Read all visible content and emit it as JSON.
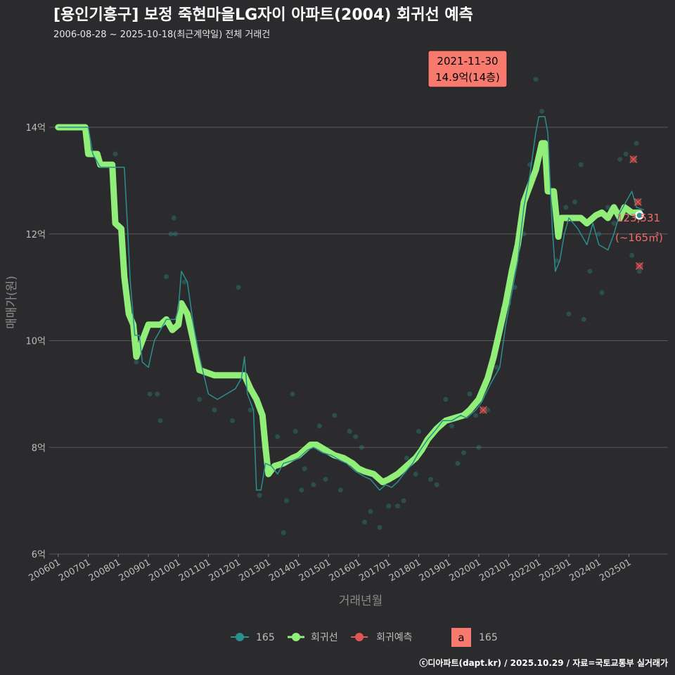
{
  "title": "[용인기흥구] 보정 죽현마을LG자이 아파트(2004) 회귀선 예측",
  "subtitle": "2006-08-28 ~ 2025-10-18(최근계약일) 전체 거래건",
  "caption": "ⓒ디아파트(dapt.kr) / 2025.10.29 / 자료=국토교통부 실거래가",
  "colors": {
    "background": "#2b2b2d",
    "grid": "#5a5a5a",
    "regression": "#90ee79",
    "area_line": "#2a8f8f",
    "prediction": "#e05555",
    "annotation_bg": "#f87a6e"
  },
  "chart_data": {
    "type": "line",
    "xlabel": "거래년월",
    "ylabel": "매매가(원)",
    "ylim": [
      6,
      15.2
    ],
    "xlim": [
      2005.7,
      2026.3
    ],
    "y_ticks": [
      {
        "value": 6,
        "label": "6억"
      },
      {
        "value": 8,
        "label": "8억"
      },
      {
        "value": 10,
        "label": "10억"
      },
      {
        "value": 12,
        "label": "12억"
      },
      {
        "value": 14,
        "label": "14억"
      }
    ],
    "x_ticks": [
      {
        "value": 2006.0,
        "label": "200601"
      },
      {
        "value": 2007.0,
        "label": "200701"
      },
      {
        "value": 2008.0,
        "label": "200801"
      },
      {
        "value": 2009.0,
        "label": "200901"
      },
      {
        "value": 2010.0,
        "label": "201001"
      },
      {
        "value": 2011.0,
        "label": "201101"
      },
      {
        "value": 2012.0,
        "label": "201201"
      },
      {
        "value": 2013.0,
        "label": "201301"
      },
      {
        "value": 2014.0,
        "label": "201401"
      },
      {
        "value": 2015.0,
        "label": "201501"
      },
      {
        "value": 2016.0,
        "label": "201601"
      },
      {
        "value": 2017.0,
        "label": "201701"
      },
      {
        "value": 2018.0,
        "label": "201801"
      },
      {
        "value": 2019.0,
        "label": "201901"
      },
      {
        "value": 2020.0,
        "label": "202001"
      },
      {
        "value": 2021.0,
        "label": "202101"
      },
      {
        "value": 2022.0,
        "label": "202201"
      },
      {
        "value": 2023.0,
        "label": "202301"
      },
      {
        "value": 2024.0,
        "label": "202401"
      },
      {
        "value": 2025.0,
        "label": "202501"
      }
    ],
    "series": [
      {
        "name": "회귀선",
        "points": [
          [
            2006.0,
            14.0
          ],
          [
            2006.9,
            14.0
          ],
          [
            2007.0,
            13.5
          ],
          [
            2007.3,
            13.5
          ],
          [
            2007.4,
            13.3
          ],
          [
            2007.8,
            13.3
          ],
          [
            2007.9,
            12.2
          ],
          [
            2008.1,
            12.1
          ],
          [
            2008.2,
            11.2
          ],
          [
            2008.35,
            10.5
          ],
          [
            2008.5,
            10.3
          ],
          [
            2008.6,
            9.7
          ],
          [
            2008.8,
            10.0
          ],
          [
            2009.0,
            10.3
          ],
          [
            2009.4,
            10.3
          ],
          [
            2009.6,
            10.4
          ],
          [
            2009.8,
            10.2
          ],
          [
            2010.0,
            10.3
          ],
          [
            2010.1,
            10.7
          ],
          [
            2010.3,
            10.5
          ],
          [
            2010.5,
            10.0
          ],
          [
            2010.7,
            9.45
          ],
          [
            2011.2,
            9.35
          ],
          [
            2011.5,
            9.35
          ],
          [
            2012.2,
            9.35
          ],
          [
            2012.4,
            9.1
          ],
          [
            2012.6,
            8.9
          ],
          [
            2012.8,
            8.6
          ],
          [
            2012.9,
            8.0
          ],
          [
            2013.0,
            7.5
          ],
          [
            2013.2,
            7.65
          ],
          [
            2013.5,
            7.7
          ],
          [
            2013.8,
            7.8
          ],
          [
            2014.0,
            7.85
          ],
          [
            2014.2,
            7.95
          ],
          [
            2014.4,
            8.05
          ],
          [
            2014.6,
            8.05
          ],
          [
            2014.9,
            7.95
          ],
          [
            2015.2,
            7.85
          ],
          [
            2015.5,
            7.8
          ],
          [
            2015.8,
            7.7
          ],
          [
            2016.0,
            7.6
          ],
          [
            2016.2,
            7.55
          ],
          [
            2016.5,
            7.5
          ],
          [
            2016.8,
            7.35
          ],
          [
            2017.0,
            7.4
          ],
          [
            2017.3,
            7.5
          ],
          [
            2017.6,
            7.65
          ],
          [
            2017.9,
            7.8
          ],
          [
            2018.1,
            7.95
          ],
          [
            2018.3,
            8.15
          ],
          [
            2018.6,
            8.35
          ],
          [
            2018.9,
            8.5
          ],
          [
            2019.2,
            8.55
          ],
          [
            2019.5,
            8.6
          ],
          [
            2019.7,
            8.7
          ],
          [
            2020.0,
            8.9
          ],
          [
            2020.3,
            9.3
          ],
          [
            2020.5,
            9.7
          ],
          [
            2020.7,
            10.2
          ],
          [
            2020.9,
            10.7
          ],
          [
            2021.1,
            11.3
          ],
          [
            2021.3,
            11.8
          ],
          [
            2021.5,
            12.6
          ],
          [
            2021.7,
            12.9
          ],
          [
            2021.9,
            13.2
          ],
          [
            2022.1,
            13.7
          ],
          [
            2022.2,
            13.7
          ],
          [
            2022.3,
            12.8
          ],
          [
            2022.5,
            12.8
          ],
          [
            2022.65,
            11.95
          ],
          [
            2022.75,
            12.3
          ],
          [
            2023.0,
            12.3
          ],
          [
            2023.4,
            12.3
          ],
          [
            2023.6,
            12.2
          ],
          [
            2023.9,
            12.35
          ],
          [
            2024.1,
            12.4
          ],
          [
            2024.3,
            12.3
          ],
          [
            2024.5,
            12.5
          ],
          [
            2024.7,
            12.3
          ],
          [
            2024.85,
            12.5
          ],
          [
            2025.1,
            12.4
          ],
          [
            2025.35,
            12.4
          ]
        ]
      },
      {
        "name": "165",
        "points": [
          [
            2006.0,
            14.0
          ],
          [
            2007.0,
            14.0
          ],
          [
            2007.15,
            13.5
          ],
          [
            2007.4,
            13.25
          ],
          [
            2008.2,
            13.25
          ],
          [
            2008.3,
            12.2
          ],
          [
            2008.4,
            11.1
          ],
          [
            2008.55,
            10.1
          ],
          [
            2008.7,
            10.1
          ],
          [
            2008.8,
            9.6
          ],
          [
            2009.0,
            9.5
          ],
          [
            2009.2,
            10.0
          ],
          [
            2009.6,
            10.4
          ],
          [
            2009.9,
            10.4
          ],
          [
            2010.0,
            10.6
          ],
          [
            2010.1,
            11.3
          ],
          [
            2010.3,
            11.1
          ],
          [
            2010.5,
            10.3
          ],
          [
            2010.7,
            9.7
          ],
          [
            2011.0,
            9.0
          ],
          [
            2011.3,
            8.9
          ],
          [
            2011.6,
            9.0
          ],
          [
            2011.9,
            9.1
          ],
          [
            2012.1,
            9.3
          ],
          [
            2012.2,
            9.7
          ],
          [
            2012.3,
            9.0
          ],
          [
            2012.5,
            8.7
          ],
          [
            2012.6,
            7.2
          ],
          [
            2012.75,
            7.2
          ],
          [
            2012.9,
            7.7
          ],
          [
            2013.1,
            7.65
          ],
          [
            2013.3,
            7.5
          ],
          [
            2013.5,
            7.7
          ],
          [
            2013.8,
            7.75
          ],
          [
            2014.0,
            7.8
          ],
          [
            2014.3,
            7.95
          ],
          [
            2014.5,
            8.0
          ],
          [
            2014.8,
            7.9
          ],
          [
            2015.1,
            7.85
          ],
          [
            2015.4,
            7.75
          ],
          [
            2015.6,
            7.7
          ],
          [
            2015.9,
            7.55
          ],
          [
            2016.2,
            7.45
          ],
          [
            2016.4,
            7.4
          ],
          [
            2016.7,
            7.2
          ],
          [
            2016.9,
            7.3
          ],
          [
            2017.1,
            7.25
          ],
          [
            2017.3,
            7.35
          ],
          [
            2017.5,
            7.5
          ],
          [
            2017.8,
            7.7
          ],
          [
            2018.0,
            7.9
          ],
          [
            2018.3,
            8.15
          ],
          [
            2018.6,
            8.35
          ],
          [
            2018.8,
            8.5
          ],
          [
            2019.1,
            8.5
          ],
          [
            2019.4,
            8.6
          ],
          [
            2019.6,
            8.55
          ],
          [
            2019.9,
            8.7
          ],
          [
            2020.1,
            8.85
          ],
          [
            2020.4,
            9.2
          ],
          [
            2020.7,
            9.5
          ],
          [
            2020.9,
            10.3
          ],
          [
            2021.1,
            10.9
          ],
          [
            2021.3,
            11.5
          ],
          [
            2021.5,
            12.5
          ],
          [
            2021.7,
            13.1
          ],
          [
            2021.9,
            13.9
          ],
          [
            2022.0,
            14.2
          ],
          [
            2022.2,
            14.2
          ],
          [
            2022.3,
            13.9
          ],
          [
            2022.45,
            12.1
          ],
          [
            2022.55,
            11.3
          ],
          [
            2022.7,
            11.5
          ],
          [
            2022.85,
            12.0
          ],
          [
            2023.0,
            12.3
          ],
          [
            2023.3,
            12.1
          ],
          [
            2023.6,
            11.8
          ],
          [
            2023.8,
            12.2
          ],
          [
            2024.0,
            11.8
          ],
          [
            2024.3,
            11.7
          ],
          [
            2024.5,
            12.0
          ],
          [
            2024.7,
            12.4
          ],
          [
            2024.9,
            12.6
          ],
          [
            2025.1,
            12.8
          ],
          [
            2025.25,
            12.5
          ],
          [
            2025.5,
            12.45
          ]
        ]
      }
    ],
    "scatter": [
      [
        2007.9,
        13.5
      ],
      [
        2008.6,
        9.6
      ],
      [
        2009.05,
        9.0
      ],
      [
        2009.3,
        9.0
      ],
      [
        2009.4,
        8.5
      ],
      [
        2009.6,
        11.2
      ],
      [
        2009.75,
        12.0
      ],
      [
        2009.85,
        12.3
      ],
      [
        2009.9,
        12.0
      ],
      [
        2010.05,
        10.6
      ],
      [
        2010.2,
        11.1
      ],
      [
        2010.7,
        8.9
      ],
      [
        2011.2,
        8.7
      ],
      [
        2011.8,
        8.5
      ],
      [
        2012.0,
        11.0
      ],
      [
        2012.4,
        8.7
      ],
      [
        2012.7,
        7.1
      ],
      [
        2013.3,
        8.2
      ],
      [
        2013.5,
        6.4
      ],
      [
        2013.6,
        7.0
      ],
      [
        2013.8,
        9.0
      ],
      [
        2013.9,
        8.3
      ],
      [
        2014.1,
        7.2
      ],
      [
        2014.2,
        7.6
      ],
      [
        2014.5,
        7.3
      ],
      [
        2014.7,
        8.4
      ],
      [
        2014.9,
        7.4
      ],
      [
        2015.2,
        8.6
      ],
      [
        2015.4,
        7.2
      ],
      [
        2015.7,
        8.3
      ],
      [
        2015.9,
        8.2
      ],
      [
        2016.1,
        8.0
      ],
      [
        2016.2,
        6.6
      ],
      [
        2016.4,
        6.8
      ],
      [
        2016.7,
        6.5
      ],
      [
        2017.0,
        6.9
      ],
      [
        2017.3,
        6.9
      ],
      [
        2017.5,
        7.0
      ],
      [
        2017.6,
        7.8
      ],
      [
        2017.9,
        7.5
      ],
      [
        2018.0,
        8.3
      ],
      [
        2018.4,
        7.4
      ],
      [
        2018.6,
        7.3
      ],
      [
        2018.9,
        8.9
      ],
      [
        2019.1,
        8.4
      ],
      [
        2019.3,
        7.7
      ],
      [
        2019.5,
        7.9
      ],
      [
        2019.7,
        9.0
      ],
      [
        2019.9,
        8.6
      ],
      [
        2020.0,
        8.0
      ],
      [
        2020.3,
        8.7
      ],
      [
        2020.6,
        9.5
      ],
      [
        2020.8,
        10.6
      ],
      [
        2021.0,
        10.7
      ],
      [
        2021.2,
        11.0
      ],
      [
        2021.5,
        12.0
      ],
      [
        2021.7,
        13.3
      ],
      [
        2021.9,
        14.9
      ],
      [
        2022.1,
        14.3
      ],
      [
        2022.3,
        13.1
      ],
      [
        2022.6,
        11.5
      ],
      [
        2022.9,
        12.5
      ],
      [
        2023.0,
        10.5
      ],
      [
        2023.2,
        12.6
      ],
      [
        2023.4,
        13.3
      ],
      [
        2023.5,
        10.4
      ],
      [
        2023.7,
        11.3
      ],
      [
        2024.0,
        12.0
      ],
      [
        2024.1,
        10.9
      ],
      [
        2024.3,
        12.5
      ],
      [
        2024.5,
        12.2
      ],
      [
        2024.7,
        13.4
      ],
      [
        2024.9,
        13.5
      ],
      [
        2025.1,
        11.6
      ],
      [
        2025.25,
        13.7
      ],
      [
        2025.35,
        11.3
      ]
    ],
    "prediction_points": [
      [
        2020.15,
        8.7
      ],
      [
        2025.15,
        13.4
      ],
      [
        2025.3,
        12.6
      ],
      [
        2025.35,
        11.4
      ]
    ],
    "peak_annotation": {
      "x": 2021.9,
      "y": 14.9,
      "date": "2021-11-30",
      "value": "14.9억(14층)"
    },
    "last_point": {
      "x": 2025.35,
      "y": 12.35,
      "value": "123,531",
      "area": "(~165㎡)"
    },
    "legend": [
      {
        "name": "165",
        "color": "#2a8f8f"
      },
      {
        "name": "회귀선",
        "color": "#90ee79"
      },
      {
        "name": "회귀예측",
        "color": "#e05555"
      },
      {
        "name": "165",
        "key": "a",
        "color": "#f87a6e"
      }
    ]
  }
}
